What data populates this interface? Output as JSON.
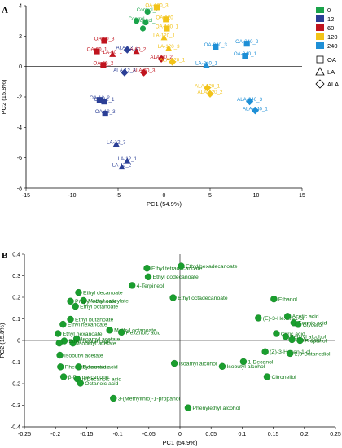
{
  "panels": {
    "a": {
      "letter": "A"
    },
    "b": {
      "letter": "B"
    }
  },
  "legend": {
    "colors": [
      {
        "label": "0",
        "color": "#1aa34a"
      },
      {
        "label": "12",
        "color": "#2b3f96"
      },
      {
        "label": "60",
        "color": "#c0141e"
      },
      {
        "label": "120",
        "color": "#f2c318"
      },
      {
        "label": "240",
        "color": "#1e8fd6"
      }
    ],
    "shapes": [
      {
        "label": "OA",
        "shape": "square"
      },
      {
        "label": "LA",
        "shape": "triangle"
      },
      {
        "label": "ALA",
        "shape": "diamond"
      }
    ]
  },
  "chart_data": [
    {
      "type": "scatter",
      "panel": "A",
      "xlabel": "PC1 (54.9%)",
      "ylabel": "PC2 (15.8%)",
      "xlim": [
        -15,
        15
      ],
      "ylim": [
        -8,
        4
      ],
      "xticks": [
        -15,
        -10,
        -5,
        0,
        5,
        10,
        15
      ],
      "yticks": [
        -8,
        -6,
        -4,
        -2,
        0,
        2,
        4
      ],
      "points": [
        {
          "name": "Control_2",
          "x": -1.8,
          "y": 3.6,
          "color": "0",
          "shape": "circle"
        },
        {
          "name": "Control",
          "x": -3.0,
          "y": 3.0,
          "color": "0",
          "shape": "circle"
        },
        {
          "name": "Control_",
          "x": -2.0,
          "y": 2.9,
          "color": "0",
          "shape": "circle"
        },
        {
          "name": "",
          "x": -2.3,
          "y": 2.5,
          "color": "0",
          "shape": "circle"
        },
        {
          "name": "OA-120_3",
          "x": -0.8,
          "y": 3.9,
          "color": "120",
          "shape": "square"
        },
        {
          "name": "OA-120_",
          "x": 0.2,
          "y": 3.1,
          "color": "120",
          "shape": "square"
        },
        {
          "name": "OA-120_1",
          "x": 0.3,
          "y": 2.5,
          "color": "120",
          "shape": "square"
        },
        {
          "name": "LA-120_1",
          "x": 0.0,
          "y": 1.9,
          "color": "120",
          "shape": "triangle"
        },
        {
          "name": "LA-120_3",
          "x": 0.5,
          "y": 1.2,
          "color": "120",
          "shape": "triangle"
        },
        {
          "name": "OA-60_3",
          "x": -6.5,
          "y": 1.7,
          "color": "60",
          "shape": "square"
        },
        {
          "name": "OA-60_1",
          "x": -7.3,
          "y": 1.0,
          "color": "60",
          "shape": "square"
        },
        {
          "name": "LA-60_1",
          "x": -5.6,
          "y": 0.8,
          "color": "60",
          "shape": "triangle"
        },
        {
          "name": "OA-60_2",
          "x": -6.6,
          "y": 0.1,
          "color": "60",
          "shape": "square"
        },
        {
          "name": "LA-60_2",
          "x": -3.0,
          "y": 1.0,
          "color": "60",
          "shape": "triangle"
        },
        {
          "name": "ALA-60_2",
          "x": -0.3,
          "y": 0.5,
          "color": "60",
          "shape": "diamond"
        },
        {
          "name": "ALA-60_3",
          "x": -2.2,
          "y": -0.4,
          "color": "60",
          "shape": "diamond"
        },
        {
          "name": "ALA-12_2",
          "x": -4.0,
          "y": 1.1,
          "color": "12",
          "shape": "diamond"
        },
        {
          "name": "ALA-12_3",
          "x": -4.3,
          "y": -0.4,
          "color": "12",
          "shape": "diamond"
        },
        {
          "name": "ALA-120_1",
          "x": 0.9,
          "y": 0.3,
          "color": "120",
          "shape": "diamond"
        },
        {
          "name": "OA-240_3",
          "x": 5.6,
          "y": 1.3,
          "color": "240",
          "shape": "square"
        },
        {
          "name": "OA-240_2",
          "x": 9.0,
          "y": 1.5,
          "color": "240",
          "shape": "square"
        },
        {
          "name": "OA-240_1",
          "x": 8.8,
          "y": 0.7,
          "color": "240",
          "shape": "square"
        },
        {
          "name": "LA-240_1",
          "x": 4.6,
          "y": 0.1,
          "color": "240",
          "shape": "triangle"
        },
        {
          "name": "ALA-120_1",
          "x": 4.7,
          "y": -1.4,
          "color": "120",
          "shape": "diamond"
        },
        {
          "name": "ALA-120_2",
          "x": 5.0,
          "y": -1.8,
          "color": "120",
          "shape": "diamond"
        },
        {
          "name": "ALA-240_3",
          "x": 9.3,
          "y": -2.3,
          "color": "240",
          "shape": "diamond"
        },
        {
          "name": "ALA-240_1",
          "x": 9.9,
          "y": -2.9,
          "color": "240",
          "shape": "diamond"
        },
        {
          "name": "OA-12_2",
          "x": -7.0,
          "y": -2.2,
          "color": "12",
          "shape": "square"
        },
        {
          "name": "OA-12_1",
          "x": -6.5,
          "y": -2.3,
          "color": "12",
          "shape": "square"
        },
        {
          "name": "OA-12_3",
          "x": -6.4,
          "y": -3.1,
          "color": "12",
          "shape": "square"
        },
        {
          "name": "LA-12_3",
          "x": -5.2,
          "y": -5.1,
          "color": "12",
          "shape": "triangle"
        },
        {
          "name": "LA-12_1",
          "x": -4.0,
          "y": -6.2,
          "color": "12",
          "shape": "triangle"
        },
        {
          "name": "LA-12_2",
          "x": -4.6,
          "y": -6.6,
          "color": "12",
          "shape": "triangle"
        }
      ]
    },
    {
      "type": "scatter",
      "panel": "B",
      "xlabel": "PC1 (54.9%)",
      "ylabel": "PC2 (15.8%)",
      "xlim": [
        -0.25,
        0.25
      ],
      "ylim": [
        -0.4,
        0.4
      ],
      "xticks": [
        -0.25,
        -0.2,
        -0.15,
        -0.1,
        -0.05,
        0,
        0.05,
        0.1,
        0.15,
        0.2,
        0.25
      ],
      "yticks": [
        -0.4,
        -0.3,
        -0.2,
        -0.1,
        0,
        0.1,
        0.2,
        0.3,
        0.4
      ],
      "points": [
        {
          "name": "Ethyl tetradecanoate",
          "x": -0.053,
          "y": 0.335
        },
        {
          "name": "Ethyl hexadecanoate",
          "x": 0.002,
          "y": 0.345
        },
        {
          "name": "Ethyl dodecanoate",
          "x": -0.051,
          "y": 0.295
        },
        {
          "name": "4-Terpineol",
          "x": -0.077,
          "y": 0.255
        },
        {
          "name": "Ethyl decanoate",
          "x": -0.163,
          "y": 0.222
        },
        {
          "name": "Methyl salicylate",
          "x": -0.155,
          "y": 0.185
        },
        {
          "name": "Propyl octanoate",
          "x": -0.176,
          "y": 0.182
        },
        {
          "name": "Ethyl octanoate",
          "x": -0.168,
          "y": 0.158
        },
        {
          "name": "Ethyl octadecanoate",
          "x": -0.011,
          "y": 0.198
        },
        {
          "name": "Ethyl butanoate",
          "x": -0.176,
          "y": 0.098
        },
        {
          "name": "Ethyl hexanoate",
          "x": -0.188,
          "y": 0.075
        },
        {
          "name": "Methyl octanoate",
          "x": -0.113,
          "y": 0.048
        },
        {
          "name": "Hexanoic acid",
          "x": -0.094,
          "y": 0.038
        },
        {
          "name": "Isoamyl acetate",
          "x": -0.166,
          "y": 0.008
        },
        {
          "name": "Isobutyl acetate",
          "x": -0.172,
          "y": -0.012
        },
        {
          "name": "Ethyl hexanoate",
          "x": -0.196,
          "y": 0.032
        },
        {
          "name": "Ethyl heptanoate",
          "x": -0.186,
          "y": -0.002
        },
        {
          "name": "",
          "x": -0.194,
          "y": -0.012
        },
        {
          "name": "Isobutyl acetate",
          "x": -0.193,
          "y": -0.068
        },
        {
          "name": "Phenethyl acetate",
          "x": -0.192,
          "y": -0.122
        },
        {
          "name": "Decanoic acid",
          "x": -0.163,
          "y": -0.122
        },
        {
          "name": "β-Damascenone",
          "x": -0.187,
          "y": -0.168
        },
        {
          "name": "n-Decanoic acid",
          "x": -0.165,
          "y": -0.178
        },
        {
          "name": "Octanoic acid",
          "x": -0.16,
          "y": -0.198
        },
        {
          "name": "Isoamyl alcohol",
          "x": -0.009,
          "y": -0.106
        },
        {
          "name": "3-(Methylthio)-1-propanol",
          "x": -0.107,
          "y": -0.268
        },
        {
          "name": "Phenylethyl alcohol",
          "x": 0.013,
          "y": -0.312
        },
        {
          "name": "Ethanol",
          "x": 0.151,
          "y": 0.192
        },
        {
          "name": "(E)-3-Hexen-1-ol",
          "x": 0.126,
          "y": 0.104
        },
        {
          "name": "Acetic acid",
          "x": 0.173,
          "y": 0.112
        },
        {
          "name": "Formic acid",
          "x": 0.183,
          "y": 0.082
        },
        {
          "name": "Glycerol",
          "x": 0.19,
          "y": 0.074
        },
        {
          "name": "Citric acid",
          "x": 0.155,
          "y": 0.032
        },
        {
          "name": "Benzyl alcohol",
          "x": 0.17,
          "y": 0.018
        },
        {
          "name": "Malic acid",
          "x": 0.18,
          "y": 0.004
        },
        {
          "name": "Propanol",
          "x": 0.193,
          "y": 0.0
        },
        {
          "name": "(Z)-3-Hexen-1-ol",
          "x": 0.137,
          "y": -0.052
        },
        {
          "name": "2,3-Butanediol",
          "x": 0.177,
          "y": -0.06
        },
        {
          "name": "1-Decanol",
          "x": 0.102,
          "y": -0.098
        },
        {
          "name": "Isobutyl alcohol",
          "x": 0.068,
          "y": -0.12
        },
        {
          "name": "Citronellol",
          "x": 0.14,
          "y": -0.168
        }
      ]
    }
  ]
}
